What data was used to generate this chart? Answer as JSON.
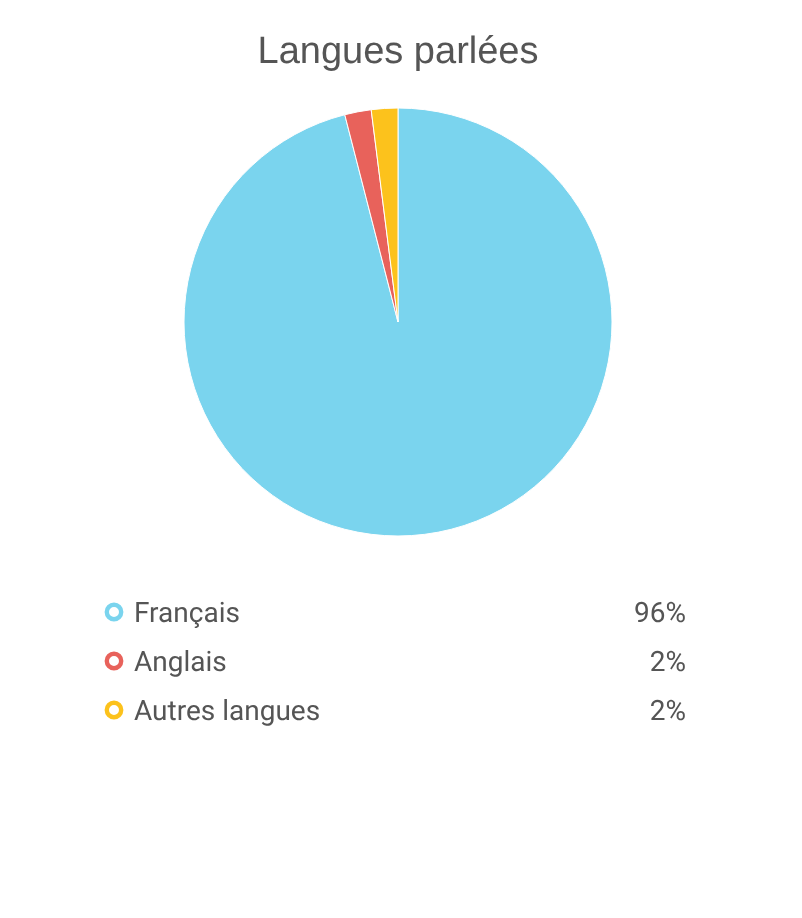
{
  "chart_data": {
    "type": "pie",
    "title": "Langues parlées",
    "categories": [
      "Français",
      "Anglais",
      "Autres langues"
    ],
    "values": [
      96,
      2,
      2
    ],
    "colors": [
      "#7ad4ee",
      "#e8625b",
      "#fcc21c"
    ],
    "value_labels": [
      "96%",
      "2%",
      "2%"
    ],
    "legend": "bottom"
  }
}
